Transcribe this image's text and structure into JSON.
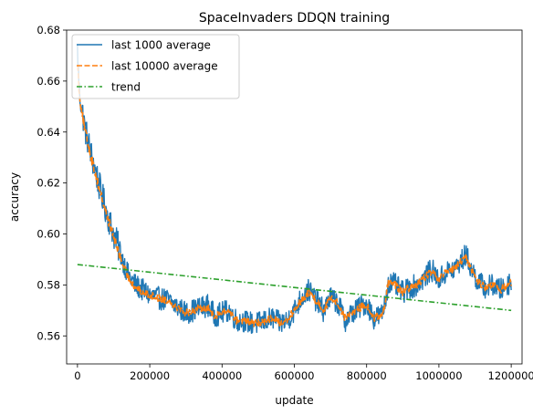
{
  "chart_data": {
    "type": "line",
    "title": "SpaceInvaders DDQN training",
    "xlabel": "update",
    "ylabel": "accuracy",
    "xlim": [
      -30000,
      1230000
    ],
    "ylim": [
      0.549,
      0.68
    ],
    "x_ticks": [
      0,
      200000,
      400000,
      600000,
      800000,
      1000000,
      1200000
    ],
    "x_tick_labels": [
      "0",
      "200000",
      "400000",
      "600000",
      "800000",
      "1000000",
      "1200000"
    ],
    "y_ticks": [
      0.56,
      0.58,
      0.6,
      0.62,
      0.64,
      0.66,
      0.68
    ],
    "y_tick_labels": [
      "0.56",
      "0.58",
      "0.60",
      "0.62",
      "0.64",
      "0.66",
      "0.68"
    ],
    "grid": false,
    "legend": {
      "placement": "top-left"
    },
    "series": [
      {
        "name": "last 1000 average",
        "color": "#1f77b4",
        "style": "solid",
        "noise": 0.0045,
        "x": [
          0,
          5000,
          20000,
          40000,
          60000,
          80000,
          100000,
          120000,
          140000,
          160000,
          180000,
          200000,
          220000,
          250000,
          280000,
          300000,
          320000,
          340000,
          360000,
          380000,
          400000,
          420000,
          440000,
          460000,
          480000,
          500000,
          520000,
          540000,
          560000,
          580000,
          600000,
          620000,
          640000,
          660000,
          680000,
          700000,
          720000,
          740000,
          760000,
          780000,
          800000,
          820000,
          840000,
          850000,
          860000,
          880000,
          900000,
          920000,
          940000,
          960000,
          980000,
          1000000,
          1020000,
          1040000,
          1060000,
          1075000,
          1090000,
          1110000,
          1130000,
          1150000,
          1170000,
          1190000,
          1200000
        ],
        "y": [
          0.672,
          0.656,
          0.642,
          0.63,
          0.619,
          0.609,
          0.6,
          0.592,
          0.584,
          0.58,
          0.578,
          0.576,
          0.575,
          0.574,
          0.571,
          0.569,
          0.57,
          0.571,
          0.572,
          0.568,
          0.569,
          0.57,
          0.566,
          0.566,
          0.565,
          0.565,
          0.566,
          0.567,
          0.565,
          0.566,
          0.57,
          0.575,
          0.578,
          0.574,
          0.57,
          0.575,
          0.573,
          0.566,
          0.569,
          0.571,
          0.573,
          0.567,
          0.568,
          0.572,
          0.581,
          0.58,
          0.577,
          0.579,
          0.58,
          0.583,
          0.586,
          0.582,
          0.585,
          0.586,
          0.589,
          0.592,
          0.586,
          0.581,
          0.579,
          0.58,
          0.578,
          0.58,
          0.582
        ]
      },
      {
        "name": "last 10000 average",
        "color": "#ff7f0e",
        "style": "dashed",
        "noise": 0.0015,
        "x": [
          0,
          5000,
          20000,
          40000,
          60000,
          80000,
          100000,
          120000,
          140000,
          160000,
          180000,
          200000,
          220000,
          250000,
          280000,
          300000,
          320000,
          340000,
          360000,
          380000,
          400000,
          420000,
          440000,
          460000,
          480000,
          500000,
          520000,
          540000,
          560000,
          580000,
          600000,
          620000,
          640000,
          660000,
          680000,
          700000,
          720000,
          740000,
          760000,
          780000,
          800000,
          820000,
          840000,
          850000,
          860000,
          880000,
          900000,
          920000,
          940000,
          960000,
          980000,
          1000000,
          1020000,
          1040000,
          1060000,
          1075000,
          1090000,
          1110000,
          1130000,
          1150000,
          1170000,
          1190000,
          1200000
        ],
        "y": [
          0.668,
          0.655,
          0.641,
          0.629,
          0.618,
          0.608,
          0.599,
          0.59,
          0.583,
          0.579,
          0.577,
          0.576,
          0.575,
          0.574,
          0.571,
          0.569,
          0.57,
          0.571,
          0.571,
          0.568,
          0.569,
          0.57,
          0.566,
          0.566,
          0.565,
          0.565,
          0.566,
          0.567,
          0.565,
          0.566,
          0.57,
          0.574,
          0.577,
          0.574,
          0.57,
          0.575,
          0.573,
          0.567,
          0.569,
          0.571,
          0.572,
          0.567,
          0.568,
          0.572,
          0.581,
          0.58,
          0.577,
          0.579,
          0.58,
          0.583,
          0.585,
          0.582,
          0.585,
          0.586,
          0.589,
          0.591,
          0.586,
          0.581,
          0.579,
          0.58,
          0.578,
          0.58,
          0.581
        ]
      },
      {
        "name": "trend",
        "color": "#2ca02c",
        "style": "dashdot",
        "noise": 0,
        "x": [
          0,
          1200000
        ],
        "y": [
          0.588,
          0.57
        ]
      }
    ]
  }
}
